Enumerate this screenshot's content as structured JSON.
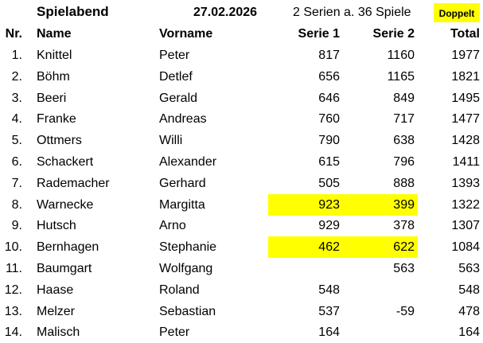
{
  "header": {
    "title": "Spielabend",
    "date": "27.02.2026",
    "info": "2 Serien a. 36 Spiele",
    "badge": "Doppelt",
    "highlight_color": "#ffff00"
  },
  "columns": {
    "nr": "Nr.",
    "name": "Name",
    "vorname": "Vorname",
    "serie1": "Serie 1",
    "serie2": "Serie 2",
    "total": "Total"
  },
  "rows": [
    {
      "nr": "1.",
      "name": "Knittel",
      "vorname": "Peter",
      "serie1": "817",
      "serie2": "1160",
      "total": "1977",
      "highlight": false
    },
    {
      "nr": "2.",
      "name": "Böhm",
      "vorname": "Detlef",
      "serie1": "656",
      "serie2": "1165",
      "total": "1821",
      "highlight": false
    },
    {
      "nr": "3.",
      "name": "Beeri",
      "vorname": "Gerald",
      "serie1": "646",
      "serie2": "849",
      "total": "1495",
      "highlight": false
    },
    {
      "nr": "4.",
      "name": "Franke",
      "vorname": "Andreas",
      "serie1": "760",
      "serie2": "717",
      "total": "1477",
      "highlight": false
    },
    {
      "nr": "5.",
      "name": "Ottmers",
      "vorname": "Willi",
      "serie1": "790",
      "serie2": "638",
      "total": "1428",
      "highlight": false
    },
    {
      "nr": "6.",
      "name": "Schackert",
      "vorname": "Alexander",
      "serie1": "615",
      "serie2": "796",
      "total": "1411",
      "highlight": false
    },
    {
      "nr": "7.",
      "name": "Rademacher",
      "vorname": "Gerhard",
      "serie1": "505",
      "serie2": "888",
      "total": "1393",
      "highlight": false
    },
    {
      "nr": "8.",
      "name": "Warnecke",
      "vorname": "Margitta",
      "serie1": "923",
      "serie2": "399",
      "total": "1322",
      "highlight": true
    },
    {
      "nr": "9.",
      "name": "Hutsch",
      "vorname": "Arno",
      "serie1": "929",
      "serie2": "378",
      "total": "1307",
      "highlight": false
    },
    {
      "nr": "10.",
      "name": "Bernhagen",
      "vorname": "Stephanie",
      "serie1": "462",
      "serie2": "622",
      "total": "1084",
      "highlight": true
    },
    {
      "nr": "11.",
      "name": "Baumgart",
      "vorname": "Wolfgang",
      "serie1": "",
      "serie2": "563",
      "total": "563",
      "highlight": false
    },
    {
      "nr": "12.",
      "name": "Haase",
      "vorname": "Roland",
      "serie1": "548",
      "serie2": "",
      "total": "548",
      "highlight": false
    },
    {
      "nr": "13.",
      "name": "Melzer",
      "vorname": "Sebastian",
      "serie1": "537",
      "serie2": "-59",
      "total": "478",
      "highlight": false
    },
    {
      "nr": "14.",
      "name": "Malisch",
      "vorname": "Peter",
      "serie1": "164",
      "serie2": "",
      "total": "164",
      "highlight": false
    }
  ]
}
